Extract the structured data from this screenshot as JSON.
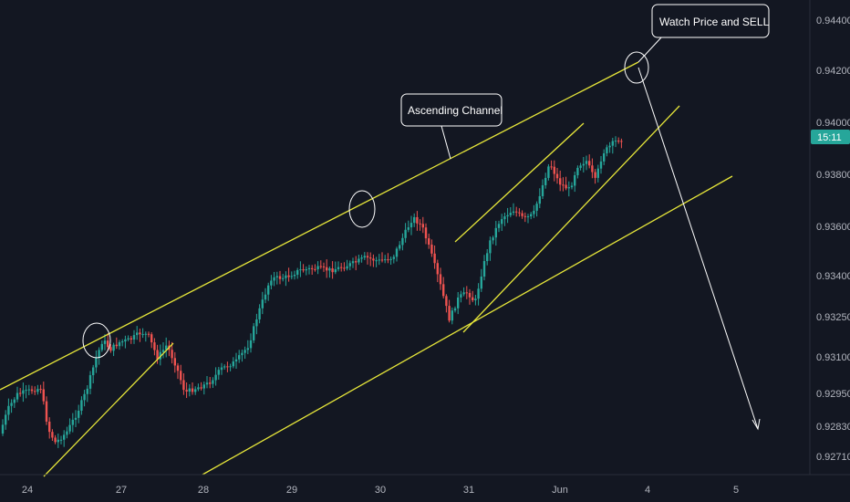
{
  "chart_data": {
    "type": "candlestick",
    "title": "",
    "xlabel": "",
    "ylabel": "",
    "x_ticks": [
      "24",
      "27",
      "28",
      "29",
      "30",
      "31",
      "Jun",
      "4",
      "5"
    ],
    "y_ticks": [
      "0.94400",
      "0.94200",
      "0.94000",
      "0.93800",
      "0.93600",
      "0.93400",
      "0.93250",
      "0.93100",
      "0.92950",
      "0.92830",
      "0.92710"
    ],
    "current_price_label": "15:11",
    "annotations": [
      {
        "name": "ascending-channel-callout",
        "text": "Ascending Channel"
      },
      {
        "name": "watch-price-callout",
        "text": "Watch Price  and SELL"
      }
    ],
    "colors": {
      "background": "#131722",
      "up": "#26a69a",
      "down": "#ef5350",
      "trendline": "#e6e63a",
      "annotation": "#ffffff",
      "axis_text": "#b2b5be",
      "current_price": "#26a69a"
    },
    "grid": false
  }
}
